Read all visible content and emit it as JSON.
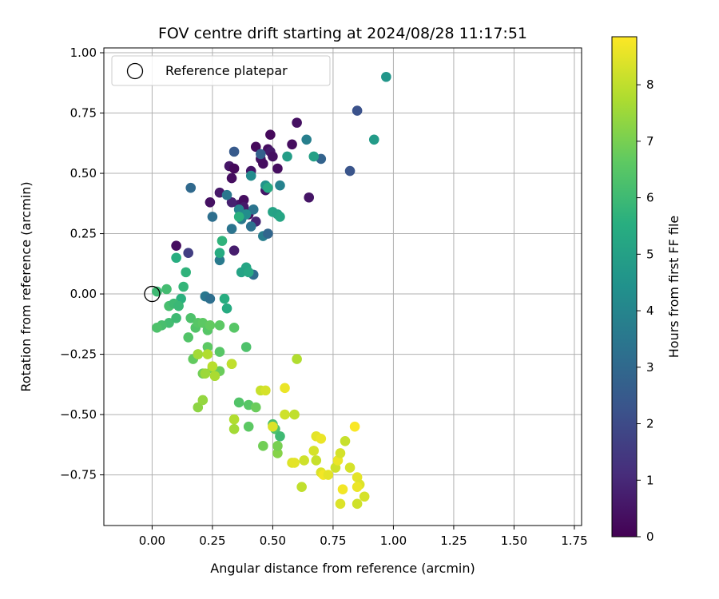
{
  "chart_data": {
    "type": "scatter",
    "title": "FOV centre drift starting at 2024/08/28 11:17:51",
    "xlabel": "Angular distance from reference (arcmin)",
    "ylabel": "Rotation from reference (arcmin)",
    "xlim": [
      -0.2,
      1.78
    ],
    "ylim": [
      -0.96,
      1.02
    ],
    "xticks": [
      0.0,
      0.25,
      0.5,
      0.75,
      1.0,
      1.25,
      1.5,
      1.75
    ],
    "xtick_labels": [
      "0.00",
      "0.25",
      "0.50",
      "0.75",
      "1.00",
      "1.25",
      "1.50",
      "1.75"
    ],
    "yticks": [
      -0.75,
      -0.5,
      -0.25,
      0.0,
      0.25,
      0.5,
      0.75,
      1.0
    ],
    "ytick_labels": [
      "−0.75",
      "−0.50",
      "−0.25",
      "0.00",
      "0.25",
      "0.50",
      "0.75",
      "1.00"
    ],
    "grid": true,
    "legend": {
      "position": "top-left",
      "entries": [
        "Reference platepar"
      ]
    },
    "reference_point": {
      "x": 0.0,
      "y": 0.0,
      "label": "Reference platepar"
    },
    "colorbar": {
      "label": "Hours from first FF file",
      "colormap": "viridis",
      "range": [
        0,
        8.85
      ],
      "ticks": [
        0,
        1,
        2,
        3,
        4,
        5,
        6,
        7,
        8
      ],
      "tick_labels": [
        "0",
        "1",
        "2",
        "3",
        "4",
        "5",
        "6",
        "7",
        "8"
      ]
    },
    "series": [
      {
        "points": [
          {
            "x": 0.1,
            "y": 0.2,
            "h": 0.3
          },
          {
            "x": 0.24,
            "y": 0.38,
            "h": 0.4
          },
          {
            "x": 0.28,
            "y": 0.42,
            "h": 0.6
          },
          {
            "x": 0.32,
            "y": 0.53,
            "h": 0.5
          },
          {
            "x": 0.33,
            "y": 0.48,
            "h": 0.3
          },
          {
            "x": 0.34,
            "y": 0.52,
            "h": 0.2
          },
          {
            "x": 0.34,
            "y": 0.18,
            "h": 0.7
          },
          {
            "x": 0.36,
            "y": 0.37,
            "h": 0.5
          },
          {
            "x": 0.38,
            "y": 0.39,
            "h": 0.3
          },
          {
            "x": 0.4,
            "y": 0.33,
            "h": 0.4
          },
          {
            "x": 0.41,
            "y": 0.51,
            "h": 0.5
          },
          {
            "x": 0.43,
            "y": 0.61,
            "h": 0.2
          },
          {
            "x": 0.45,
            "y": 0.56,
            "h": 0.4
          },
          {
            "x": 0.46,
            "y": 0.54,
            "h": 0.3
          },
          {
            "x": 0.47,
            "y": 0.43,
            "h": 0.5
          },
          {
            "x": 0.48,
            "y": 0.6,
            "h": 0.3
          },
          {
            "x": 0.49,
            "y": 0.66,
            "h": 0.2
          },
          {
            "x": 0.49,
            "y": 0.59,
            "h": 0.6
          },
          {
            "x": 0.5,
            "y": 0.57,
            "h": 0.4
          },
          {
            "x": 0.52,
            "y": 0.52,
            "h": 0.3
          },
          {
            "x": 0.58,
            "y": 0.62,
            "h": 0.3
          },
          {
            "x": 0.6,
            "y": 0.71,
            "h": 0.4
          },
          {
            "x": 0.65,
            "y": 0.4,
            "h": 0.5
          },
          {
            "x": 0.33,
            "y": 0.38,
            "h": 0.8
          },
          {
            "x": 0.43,
            "y": 0.3,
            "h": 0.9
          },
          {
            "x": 0.38,
            "y": 0.36,
            "h": 0.6
          },
          {
            "x": 0.15,
            "y": 0.17,
            "h": 1.6
          },
          {
            "x": 0.85,
            "y": 0.76,
            "h": 2.2
          },
          {
            "x": 0.82,
            "y": 0.51,
            "h": 2.3
          },
          {
            "x": 0.7,
            "y": 0.56,
            "h": 2.8
          },
          {
            "x": 0.34,
            "y": 0.59,
            "h": 2.5
          },
          {
            "x": 0.45,
            "y": 0.58,
            "h": 2.7
          },
          {
            "x": 0.16,
            "y": 0.44,
            "h": 3.0
          },
          {
            "x": 0.25,
            "y": 0.32,
            "h": 3.2
          },
          {
            "x": 0.31,
            "y": 0.41,
            "h": 3.5
          },
          {
            "x": 0.33,
            "y": 0.27,
            "h": 3.4
          },
          {
            "x": 0.37,
            "y": 0.31,
            "h": 3.6
          },
          {
            "x": 0.41,
            "y": 0.28,
            "h": 3.3
          },
          {
            "x": 0.42,
            "y": 0.35,
            "h": 3.4
          },
          {
            "x": 0.46,
            "y": 0.24,
            "h": 3.7
          },
          {
            "x": 0.48,
            "y": 0.25,
            "h": 2.9
          },
          {
            "x": 0.42,
            "y": 0.08,
            "h": 3.1
          },
          {
            "x": 0.28,
            "y": 0.14,
            "h": 3.6
          },
          {
            "x": 0.22,
            "y": -0.01,
            "h": 3.5
          },
          {
            "x": 0.24,
            "y": -0.02,
            "h": 3.2
          },
          {
            "x": 0.64,
            "y": 0.64,
            "h": 3.8
          },
          {
            "x": 0.53,
            "y": 0.45,
            "h": 3.9
          },
          {
            "x": 0.41,
            "y": 0.49,
            "h": 4.2
          },
          {
            "x": 0.36,
            "y": 0.35,
            "h": 4.0
          },
          {
            "x": 0.39,
            "y": 0.33,
            "h": 4.3
          },
          {
            "x": 0.47,
            "y": 0.45,
            "h": 4.5
          },
          {
            "x": 0.97,
            "y": 0.9,
            "h": 4.6
          },
          {
            "x": 0.92,
            "y": 0.64,
            "h": 4.8
          },
          {
            "x": 0.56,
            "y": 0.57,
            "h": 4.9
          },
          {
            "x": 0.67,
            "y": 0.57,
            "h": 5.0
          },
          {
            "x": 0.5,
            "y": 0.34,
            "h": 5.1
          },
          {
            "x": 0.52,
            "y": 0.33,
            "h": 5.0
          },
          {
            "x": 0.53,
            "y": 0.32,
            "h": 5.2
          },
          {
            "x": 0.48,
            "y": 0.44,
            "h": 5.3
          },
          {
            "x": 0.39,
            "y": 0.11,
            "h": 5.2
          },
          {
            "x": 0.37,
            "y": 0.09,
            "h": 5.1
          },
          {
            "x": 0.4,
            "y": 0.09,
            "h": 5.3
          },
          {
            "x": 0.28,
            "y": 0.17,
            "h": 5.4
          },
          {
            "x": 0.36,
            "y": 0.32,
            "h": 5.6
          },
          {
            "x": 0.3,
            "y": -0.02,
            "h": 5.5
          },
          {
            "x": 0.31,
            "y": -0.06,
            "h": 5.4
          },
          {
            "x": 0.29,
            "y": 0.22,
            "h": 5.7
          },
          {
            "x": 0.12,
            "y": -0.02,
            "h": 5.6
          },
          {
            "x": 0.1,
            "y": 0.15,
            "h": 5.5
          },
          {
            "x": 0.14,
            "y": 0.09,
            "h": 5.7
          },
          {
            "x": 0.13,
            "y": 0.03,
            "h": 5.8
          },
          {
            "x": 0.02,
            "y": 0.01,
            "h": 6.0
          },
          {
            "x": 0.06,
            "y": 0.02,
            "h": 6.1
          },
          {
            "x": 0.07,
            "y": -0.05,
            "h": 6.2
          },
          {
            "x": 0.09,
            "y": -0.04,
            "h": 6.0
          },
          {
            "x": 0.11,
            "y": -0.05,
            "h": 5.9
          },
          {
            "x": 0.07,
            "y": -0.12,
            "h": 6.1
          },
          {
            "x": 0.1,
            "y": -0.1,
            "h": 6.0
          },
          {
            "x": 0.04,
            "y": -0.13,
            "h": 6.2
          },
          {
            "x": 0.02,
            "y": -0.14,
            "h": 6.3
          },
          {
            "x": 0.16,
            "y": -0.1,
            "h": 6.3
          },
          {
            "x": 0.18,
            "y": -0.14,
            "h": 6.4
          },
          {
            "x": 0.19,
            "y": -0.12,
            "h": 6.5
          },
          {
            "x": 0.15,
            "y": -0.18,
            "h": 6.4
          },
          {
            "x": 0.21,
            "y": -0.12,
            "h": 6.6
          },
          {
            "x": 0.23,
            "y": -0.15,
            "h": 6.5
          },
          {
            "x": 0.24,
            "y": -0.13,
            "h": 6.7
          },
          {
            "x": 0.28,
            "y": -0.13,
            "h": 6.6
          },
          {
            "x": 0.34,
            "y": -0.14,
            "h": 6.5
          },
          {
            "x": 0.17,
            "y": -0.27,
            "h": 6.7
          },
          {
            "x": 0.19,
            "y": -0.25,
            "h": 6.8
          },
          {
            "x": 0.23,
            "y": -0.22,
            "h": 6.6
          },
          {
            "x": 0.28,
            "y": -0.24,
            "h": 6.5
          },
          {
            "x": 0.39,
            "y": -0.22,
            "h": 6.3
          },
          {
            "x": 0.21,
            "y": -0.33,
            "h": 6.9
          },
          {
            "x": 0.25,
            "y": -0.31,
            "h": 7.0
          },
          {
            "x": 0.28,
            "y": -0.32,
            "h": 6.8
          },
          {
            "x": 0.33,
            "y": -0.29,
            "h": 7.1
          },
          {
            "x": 0.36,
            "y": -0.45,
            "h": 6.4
          },
          {
            "x": 0.4,
            "y": -0.46,
            "h": 6.5
          },
          {
            "x": 0.43,
            "y": -0.47,
            "h": 6.8
          },
          {
            "x": 0.4,
            "y": -0.55,
            "h": 6.6
          },
          {
            "x": 0.46,
            "y": -0.63,
            "h": 6.9
          },
          {
            "x": 0.5,
            "y": -0.54,
            "h": 6.2
          },
          {
            "x": 0.51,
            "y": -0.56,
            "h": 6.3
          },
          {
            "x": 0.53,
            "y": -0.59,
            "h": 6.0
          },
          {
            "x": 0.52,
            "y": -0.66,
            "h": 7.2
          },
          {
            "x": 0.52,
            "y": -0.63,
            "h": 7.0
          },
          {
            "x": 0.19,
            "y": -0.47,
            "h": 7.3
          },
          {
            "x": 0.21,
            "y": -0.44,
            "h": 7.4
          },
          {
            "x": 0.19,
            "y": -0.25,
            "h": 7.6
          },
          {
            "x": 0.23,
            "y": -0.25,
            "h": 7.8
          },
          {
            "x": 0.25,
            "y": -0.3,
            "h": 7.9
          },
          {
            "x": 0.26,
            "y": -0.34,
            "h": 7.7
          },
          {
            "x": 0.22,
            "y": -0.33,
            "h": 7.5
          },
          {
            "x": 0.33,
            "y": -0.29,
            "h": 8.0
          },
          {
            "x": 0.34,
            "y": -0.52,
            "h": 7.8
          },
          {
            "x": 0.34,
            "y": -0.56,
            "h": 7.6
          },
          {
            "x": 0.45,
            "y": -0.4,
            "h": 8.1
          },
          {
            "x": 0.47,
            "y": -0.4,
            "h": 8.3
          },
          {
            "x": 0.5,
            "y": -0.55,
            "h": 8.4
          },
          {
            "x": 0.55,
            "y": -0.39,
            "h": 8.6
          },
          {
            "x": 0.55,
            "y": -0.5,
            "h": 8.2
          },
          {
            "x": 0.59,
            "y": -0.5,
            "h": 8.0
          },
          {
            "x": 0.6,
            "y": -0.27,
            "h": 7.8
          },
          {
            "x": 0.58,
            "y": -0.7,
            "h": 8.4
          },
          {
            "x": 0.59,
            "y": -0.7,
            "h": 8.5
          },
          {
            "x": 0.62,
            "y": -0.8,
            "h": 8.0
          },
          {
            "x": 0.63,
            "y": -0.69,
            "h": 8.2
          },
          {
            "x": 0.67,
            "y": -0.65,
            "h": 8.3
          },
          {
            "x": 0.68,
            "y": -0.69,
            "h": 8.1
          },
          {
            "x": 0.68,
            "y": -0.59,
            "h": 8.5
          },
          {
            "x": 0.7,
            "y": -0.6,
            "h": 8.6
          },
          {
            "x": 0.7,
            "y": -0.74,
            "h": 8.4
          },
          {
            "x": 0.71,
            "y": -0.75,
            "h": 8.7
          },
          {
            "x": 0.73,
            "y": -0.75,
            "h": 8.5
          },
          {
            "x": 0.76,
            "y": -0.72,
            "h": 8.2
          },
          {
            "x": 0.77,
            "y": -0.69,
            "h": 8.6
          },
          {
            "x": 0.78,
            "y": -0.66,
            "h": 8.3
          },
          {
            "x": 0.78,
            "y": -0.87,
            "h": 8.4
          },
          {
            "x": 0.79,
            "y": -0.81,
            "h": 8.7
          },
          {
            "x": 0.8,
            "y": -0.61,
            "h": 8.1
          },
          {
            "x": 0.82,
            "y": -0.72,
            "h": 8.3
          },
          {
            "x": 0.84,
            "y": -0.55,
            "h": 8.8
          },
          {
            "x": 0.85,
            "y": -0.76,
            "h": 8.5
          },
          {
            "x": 0.85,
            "y": -0.87,
            "h": 8.2
          },
          {
            "x": 0.86,
            "y": -0.79,
            "h": 8.4
          },
          {
            "x": 0.85,
            "y": -0.8,
            "h": 8.6
          },
          {
            "x": 0.88,
            "y": -0.84,
            "h": 8.3
          }
        ]
      }
    ]
  }
}
